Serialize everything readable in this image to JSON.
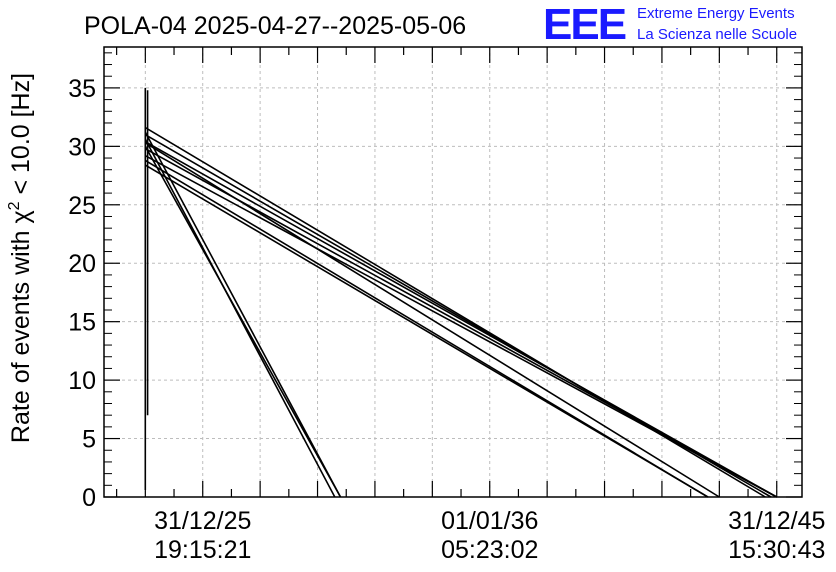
{
  "title": "POLA-04 2025-04-27--2025-05-06",
  "logo": {
    "mark": "EEE",
    "line1": "Extreme Energy Events",
    "line2": "La Scienza nelle Scuole",
    "color": "#1a1aff"
  },
  "chart_data": {
    "type": "line",
    "title": "POLA-04 2025-04-27--2025-05-06",
    "ylabel_prefix": "Rate of events with ",
    "ylabel_chi": "χ",
    "ylabel_sup": "2",
    "ylabel_suffix": " < 10.0 [Hz]",
    "ylim": [
      0,
      38.5
    ],
    "xlim": [
      -0.36,
      5.72
    ],
    "grid": true,
    "y_ticks": [
      0,
      5,
      10,
      15,
      20,
      25,
      30,
      35
    ],
    "x_ticks": [
      {
        "x": 0.5,
        "line1": "31/12/25",
        "line2": "19:15:21"
      },
      {
        "x": 3.0,
        "line1": "01/01/36",
        "line2": "05:23:02"
      },
      {
        "x": 5.5,
        "line1": "31/12/45",
        "line2": "15:30:43"
      }
    ],
    "series": [
      {
        "points": [
          [
            0.0,
            31.6
          ],
          [
            5.4,
            0.0
          ]
        ]
      },
      {
        "points": [
          [
            0.0,
            31.0
          ],
          [
            5.45,
            0.0
          ]
        ]
      },
      {
        "points": [
          [
            0.0,
            30.4
          ],
          [
            5.5,
            0.0
          ]
        ]
      },
      {
        "points": [
          [
            0.0,
            29.8
          ],
          [
            5.5,
            0.0
          ]
        ]
      },
      {
        "points": [
          [
            0.0,
            29.2
          ],
          [
            5.5,
            0.0
          ]
        ]
      },
      {
        "points": [
          [
            0.0,
            28.4
          ],
          [
            4.9,
            0.0
          ]
        ]
      },
      {
        "points": [
          [
            0.0,
            30.3
          ],
          [
            5.0,
            0.0
          ]
        ]
      },
      {
        "points": [
          [
            0.0,
            28.8
          ],
          [
            4.9,
            0.0
          ]
        ]
      },
      {
        "points": [
          [
            0.0,
            31.2
          ],
          [
            1.7,
            0.0
          ]
        ]
      },
      {
        "points": [
          [
            0.0,
            30.6
          ],
          [
            1.65,
            0.0
          ]
        ]
      },
      {
        "points": [
          [
            0.0,
            30.0
          ],
          [
            1.7,
            0.0
          ]
        ]
      },
      {
        "points": [
          [
            0.0,
            0.6
          ],
          [
            0.0,
            35.0
          ]
        ]
      },
      {
        "points": [
          [
            0.02,
            7.0
          ],
          [
            0.02,
            34.8
          ]
        ]
      }
    ]
  }
}
